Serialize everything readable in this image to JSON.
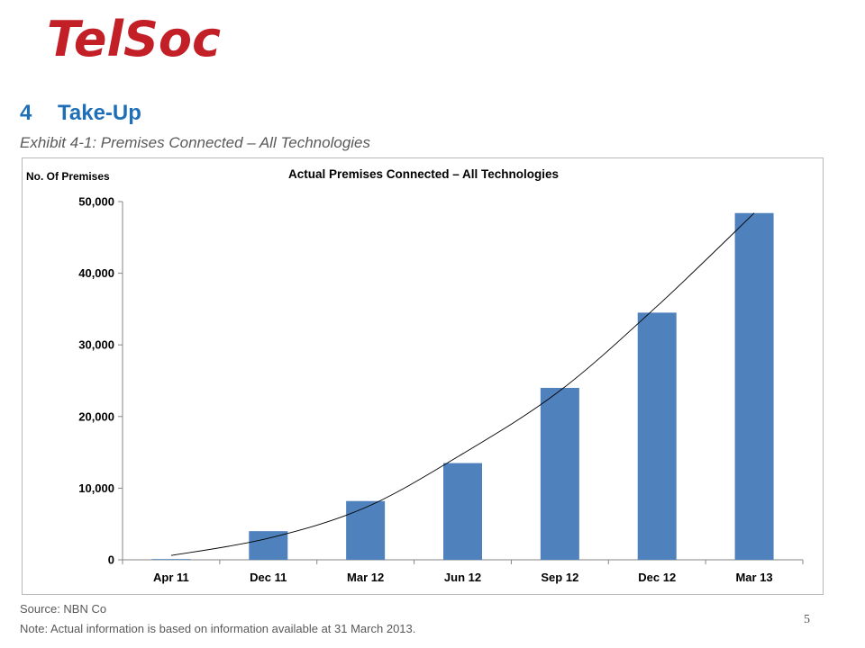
{
  "logo": "TelSoc",
  "section": {
    "number": "4",
    "title": "Take-Up"
  },
  "exhibit_title": "Exhibit 4-1: Premises Connected – All Technologies",
  "chart_data": {
    "type": "bar",
    "title": "Actual Premises Connected – All Technologies",
    "xlabel": "",
    "ylabel": "No. Of Premises",
    "categories": [
      "Apr 11",
      "Dec 11",
      "Mar 12",
      "Jun 12",
      "Sep 12",
      "Dec 12",
      "Mar 13"
    ],
    "values": [
      100,
      4000,
      8200,
      13500,
      24000,
      34500,
      48400
    ],
    "ylim": [
      0,
      50000
    ],
    "yticks": [
      0,
      10000,
      20000,
      30000,
      40000,
      50000
    ],
    "ytick_labels": [
      "0",
      "10,000",
      "20,000",
      "30,000",
      "40,000",
      "50,000"
    ],
    "trendline": {
      "type": "polynomial",
      "values": [
        600,
        3000,
        7300,
        14800,
        23600,
        35400,
        48400
      ]
    },
    "bar_color": "#4f81bd",
    "trend_color": "#000000",
    "grid": false,
    "legend": "none"
  },
  "source": "Source: NBN Co",
  "note": "Note: Actual information is based on information available at 31 March 2013.",
  "page_number": "5"
}
